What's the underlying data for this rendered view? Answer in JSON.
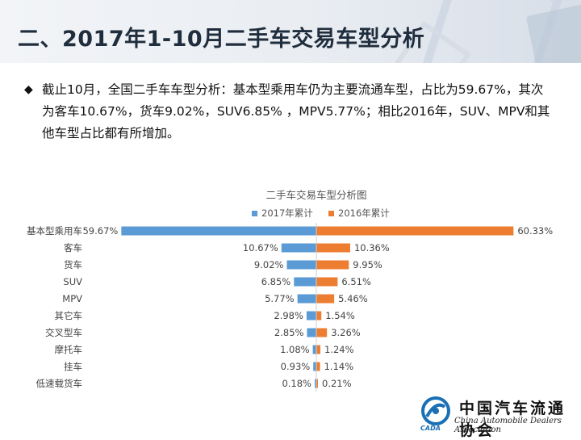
{
  "page": {
    "title": "二、2017年1-10月二手车交易车型分析",
    "bullet": "◆",
    "summary_lines": [
      "截止10月，全国二手车车型分析：基本型乘用车仍为主要流通车型，占比为59.67%，其次",
      "为客车10.67%，货车9.02%，SUV6.85% ，MPV5.77%；相比2016年，SUV、MPV和其",
      "他车型占比都有所增加。"
    ]
  },
  "logo": {
    "cn": "中国汽车流通协会",
    "en": "China Automobile Dealers Association",
    "abbr": "CADA"
  },
  "chart_data": {
    "type": "bar",
    "orientation": "horizontal-butterfly",
    "title": "二手车交易车型分析图",
    "categories": [
      "基本型乘用车",
      "客车",
      "货车",
      "SUV",
      "MPV",
      "其它车",
      "交叉型车",
      "摩托车",
      "挂车",
      "低速载货车"
    ],
    "series": [
      {
        "name": "2017年累计",
        "color": "#5b9bd5",
        "side": "left",
        "values": [
          59.67,
          10.67,
          9.02,
          6.85,
          5.77,
          2.98,
          2.85,
          1.08,
          0.93,
          0.18
        ],
        "labels": [
          "59.67%",
          "10.67%",
          "9.02%",
          "6.85%",
          "5.77%",
          "2.98%",
          "2.85%",
          "1.08%",
          "0.93%",
          "0.18%"
        ]
      },
      {
        "name": "2016年累计",
        "color": "#ed7d31",
        "side": "right",
        "values": [
          60.33,
          10.36,
          9.95,
          6.51,
          5.46,
          1.54,
          3.26,
          1.24,
          1.14,
          0.21
        ],
        "labels": [
          "60.33%",
          "10.36%",
          "9.95%",
          "6.51%",
          "5.46%",
          "1.54%",
          "3.26%",
          "1.24%",
          "1.14%",
          "0.21%"
        ]
      }
    ],
    "unit": "%",
    "legend_position": "top",
    "grid": false
  }
}
